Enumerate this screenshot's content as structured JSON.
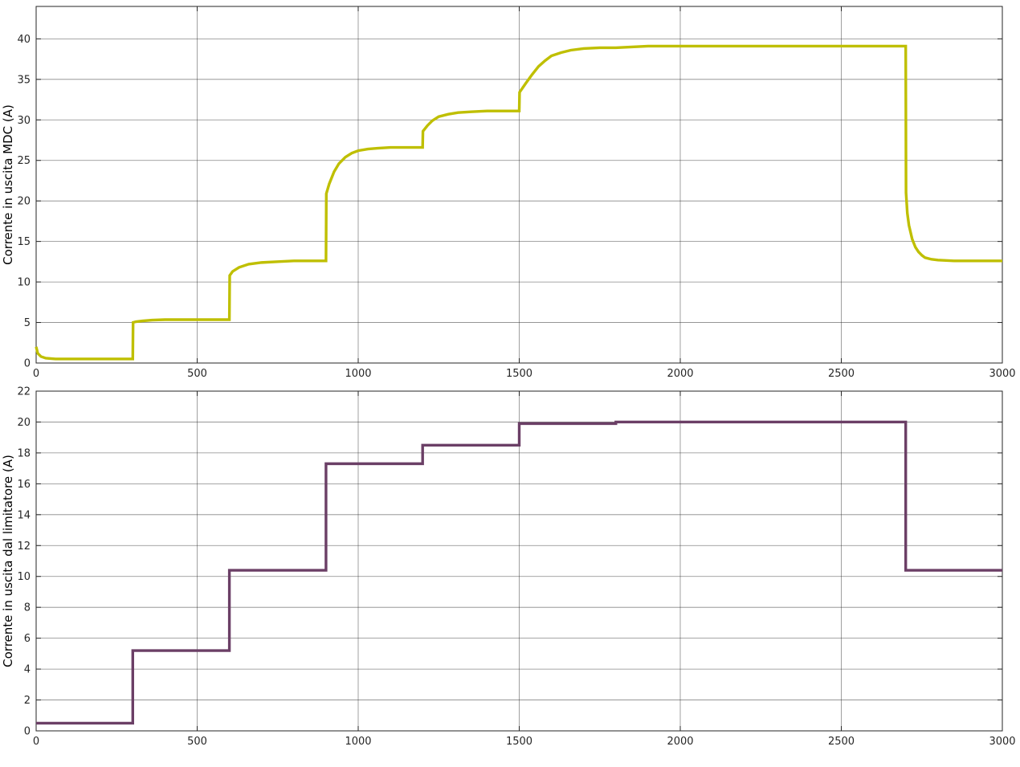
{
  "chart_data": [
    {
      "type": "line",
      "ylabel": "Corrente in uscita MDC (A)",
      "xlabel": "",
      "xlim": [
        0,
        3000
      ],
      "ylim": [
        0,
        44
      ],
      "xticks": [
        0,
        500,
        1000,
        1500,
        2000,
        2500,
        3000
      ],
      "yticks": [
        0,
        5,
        10,
        15,
        20,
        25,
        30,
        35,
        40
      ],
      "grid": true,
      "series": [
        {
          "color": "#bfbf00",
          "x": [
            0,
            5,
            15,
            30,
            60,
            120,
            200,
            299,
            300,
            301,
            310,
            330,
            360,
            400,
            450,
            500,
            550,
            599,
            600,
            601,
            610,
            630,
            660,
            700,
            750,
            800,
            850,
            899,
            900,
            901,
            910,
            925,
            940,
            960,
            980,
            1000,
            1030,
            1060,
            1100,
            1150,
            1199,
            1200,
            1201,
            1215,
            1230,
            1250,
            1280,
            1310,
            1350,
            1400,
            1450,
            1499,
            1500,
            1501,
            1520,
            1540,
            1560,
            1580,
            1600,
            1630,
            1660,
            1700,
            1750,
            1800,
            1850,
            1900,
            2000,
            2200,
            2400,
            2600,
            2699,
            2700,
            2701,
            2705,
            2710,
            2720,
            2730,
            2740,
            2750,
            2760,
            2780,
            2800,
            2850,
            2900,
            2950,
            3000
          ],
          "y": [
            2.0,
            1.2,
            0.8,
            0.6,
            0.5,
            0.5,
            0.5,
            0.5,
            0.5,
            5.0,
            5.1,
            5.2,
            5.3,
            5.35,
            5.35,
            5.35,
            5.35,
            5.35,
            5.35,
            10.8,
            11.3,
            11.8,
            12.2,
            12.4,
            12.5,
            12.6,
            12.6,
            12.6,
            12.6,
            20.9,
            22.1,
            23.6,
            24.6,
            25.4,
            25.9,
            26.2,
            26.4,
            26.5,
            26.6,
            26.6,
            26.6,
            26.6,
            28.6,
            29.3,
            29.9,
            30.4,
            30.7,
            30.9,
            31.0,
            31.1,
            31.1,
            31.1,
            31.1,
            33.4,
            34.5,
            35.6,
            36.6,
            37.3,
            37.9,
            38.3,
            38.6,
            38.8,
            38.9,
            38.9,
            39.0,
            39.1,
            39.1,
            39.1,
            39.1,
            39.1,
            39.1,
            39.1,
            21.0,
            18.5,
            17.0,
            15.3,
            14.3,
            13.7,
            13.3,
            13.0,
            12.8,
            12.7,
            12.6,
            12.6,
            12.6,
            12.6
          ]
        }
      ]
    },
    {
      "type": "line",
      "ylabel": "Corrente in uscita dal limitatore (A)",
      "xlabel": "",
      "xlim": [
        0,
        3000
      ],
      "ylim": [
        0,
        22
      ],
      "xticks": [
        0,
        500,
        1000,
        1500,
        2000,
        2500,
        3000
      ],
      "yticks": [
        0,
        2,
        4,
        6,
        8,
        10,
        12,
        14,
        16,
        18,
        20,
        22
      ],
      "grid": true,
      "series": [
        {
          "color": "#6b3f66",
          "x": [
            0,
            300,
            300,
            600,
            600,
            900,
            900,
            1200,
            1200,
            1500,
            1500,
            1800,
            1800,
            2700,
            2700,
            3000
          ],
          "y": [
            0.5,
            0.5,
            5.2,
            5.2,
            10.4,
            10.4,
            17.3,
            17.3,
            18.5,
            18.5,
            19.9,
            19.9,
            20.0,
            20.0,
            10.4,
            10.4
          ]
        }
      ]
    }
  ]
}
